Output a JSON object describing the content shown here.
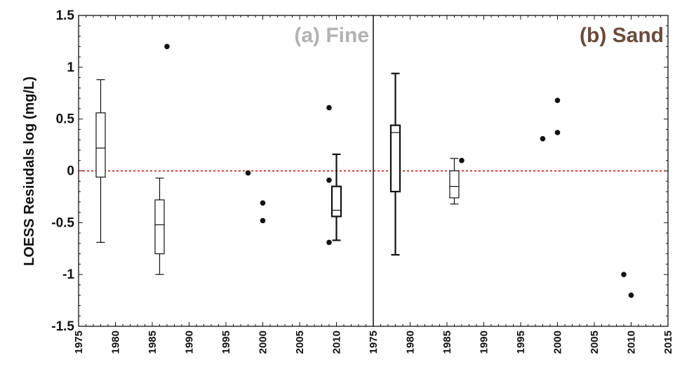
{
  "chart_data": {
    "type": "boxplot",
    "ylabel": "LOESS Resiudals log (mg/L)",
    "ylim": [
      -1.5,
      1.5
    ],
    "yticks": [
      -1.5,
      -1,
      -0.5,
      0,
      0.5,
      1,
      1.5
    ],
    "ytick_labels": [
      "-1.5",
      "-1",
      "-0.5",
      "0",
      "0.5",
      "1",
      "1.5"
    ],
    "reference_line": {
      "y": 0,
      "color": "#cc0000",
      "style": "dashed"
    },
    "grid": false,
    "panels": [
      {
        "title": "(a) Fine",
        "title_color": "#b3b3b3",
        "xlim": [
          1975,
          2015
        ],
        "xticks": [
          1975,
          1980,
          1985,
          1990,
          1995,
          2000,
          2005,
          2010
        ],
        "xtick_labels": [
          "1975",
          "1980",
          "1985",
          "1990",
          "1995",
          "2000",
          "2005",
          "2010"
        ],
        "boxes": [
          {
            "x": 1978,
            "whisker_low": -0.69,
            "q1": -0.06,
            "median": 0.22,
            "q3": 0.56,
            "whisker_high": 0.88,
            "bold": false
          },
          {
            "x": 1986,
            "whisker_low": -1.0,
            "q1": -0.8,
            "median": -0.52,
            "q3": -0.28,
            "whisker_high": -0.07,
            "bold": false
          },
          {
            "x": 2010,
            "whisker_low": -0.67,
            "q1": -0.44,
            "median": -0.38,
            "q3": -0.15,
            "whisker_high": 0.16,
            "bold": true
          }
        ],
        "points": [
          {
            "x": 1987,
            "y": 1.2
          },
          {
            "x": 1998,
            "y": -0.02
          },
          {
            "x": 2000,
            "y": -0.31
          },
          {
            "x": 2000,
            "y": -0.48
          },
          {
            "x": 2009,
            "y": 0.61
          },
          {
            "x": 2009,
            "y": -0.09
          },
          {
            "x": 2009,
            "y": -0.69
          }
        ]
      },
      {
        "title": "(b) Sand",
        "title_color": "#6b4a3a",
        "xlim": [
          1975,
          2015
        ],
        "xticks": [
          1975,
          1980,
          1985,
          1990,
          1995,
          2000,
          2005,
          2010,
          2015
        ],
        "xtick_labels": [
          "1975",
          "1980",
          "1985",
          "1990",
          "1995",
          "2000",
          "2005",
          "2010",
          "2015"
        ],
        "boxes": [
          {
            "x": 1978,
            "whisker_low": -0.81,
            "q1": -0.2,
            "median": 0.37,
            "q3": 0.44,
            "whisker_high": 0.94,
            "bold": true
          },
          {
            "x": 1986,
            "whisker_low": -0.32,
            "q1": -0.26,
            "median": -0.15,
            "q3": 0.0,
            "whisker_high": 0.12,
            "bold": false
          }
        ],
        "points": [
          {
            "x": 1987,
            "y": 0.1
          },
          {
            "x": 1998,
            "y": 0.31
          },
          {
            "x": 2000,
            "y": 0.68
          },
          {
            "x": 2000,
            "y": 0.37
          },
          {
            "x": 2009,
            "y": -1.0
          },
          {
            "x": 2010,
            "y": -1.2
          }
        ]
      }
    ]
  }
}
